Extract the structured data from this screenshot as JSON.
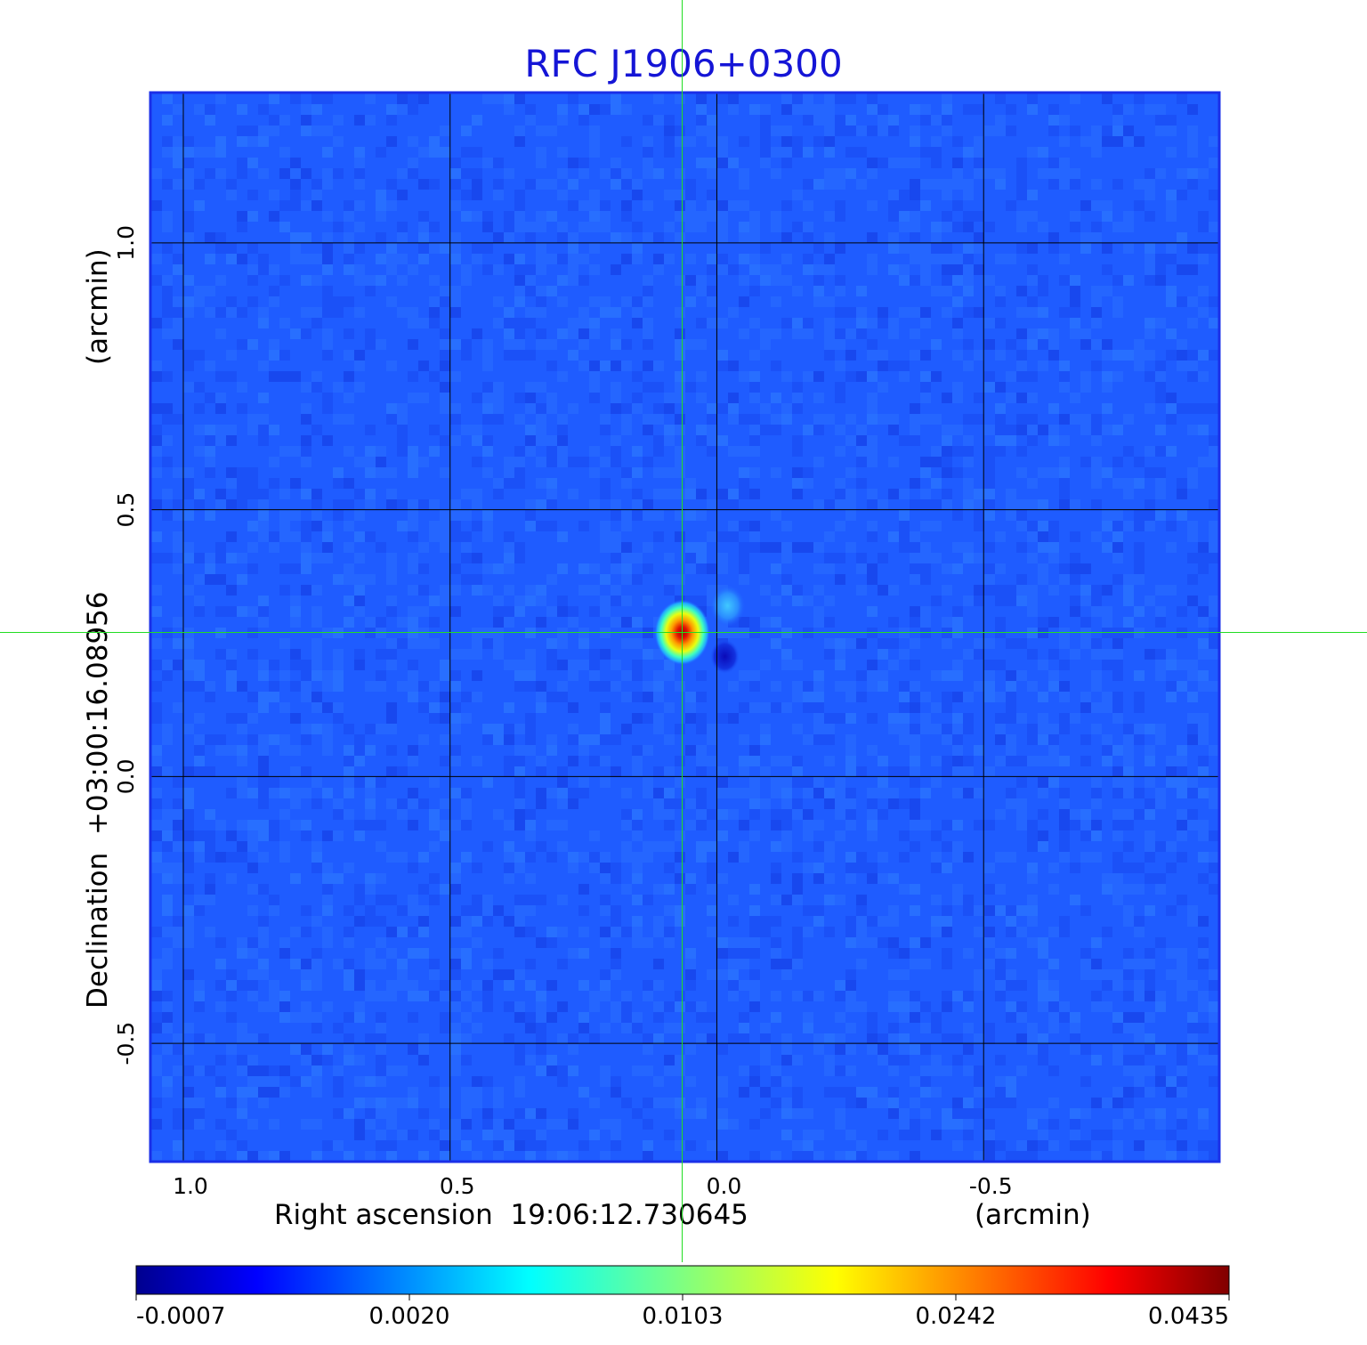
{
  "chart_data": {
    "type": "heatmap",
    "title": "RFC J1906+0300",
    "xlabel": "Right ascension  19:06:12.730645",
    "xunit": "(arcmin)",
    "ylabel": "Declination  +03:00:16.08956",
    "yunit": "(arcmin)",
    "x_ticks": [
      {
        "value": 1.0,
        "label": "1.0"
      },
      {
        "value": 0.5,
        "label": "0.5"
      },
      {
        "value": 0.0,
        "label": "0.0"
      },
      {
        "value": -0.5,
        "label": "-0.5"
      }
    ],
    "y_ticks": [
      {
        "value": 1.0,
        "label": "1.0"
      },
      {
        "value": 0.5,
        "label": "0.5"
      },
      {
        "value": 0.0,
        "label": "0.0"
      },
      {
        "value": -0.5,
        "label": "-0.5"
      }
    ],
    "xlim": [
      1.06,
      -0.94
    ],
    "ylim": [
      -0.72,
      1.28
    ],
    "x_reversed": true,
    "grid": true,
    "crosshair": {
      "x": 0.065,
      "y": 0.27,
      "color": "#22dd22"
    },
    "colorbar": {
      "orientation": "horizontal",
      "colormap": "jet",
      "ticks": [
        "-0.0007",
        "0.0020",
        "0.0103",
        "0.0242",
        "0.0435"
      ]
    },
    "background_level": 0.0005,
    "sources": [
      {
        "x": 0.065,
        "y": 0.27,
        "peak": 0.0435,
        "sigma": 0.028
      },
      {
        "x": -0.02,
        "y": 0.32,
        "peak": 0.0055,
        "sigma": 0.018
      },
      {
        "x": -0.015,
        "y": 0.225,
        "peak": -0.0007,
        "sigma": 0.015
      }
    ],
    "colors": {
      "title": "#1515d6",
      "frame": "#1a2fe8",
      "grid": "#000000",
      "crosshair": "#22dd22"
    }
  }
}
